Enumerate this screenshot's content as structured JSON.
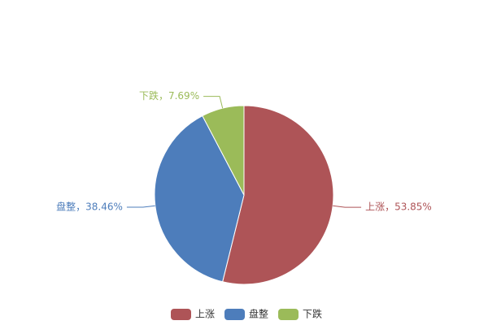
{
  "chart_data": {
    "type": "pie",
    "categories": [
      "上涨",
      "盘整",
      "下跌"
    ],
    "values": [
      53.85,
      38.46,
      7.69
    ],
    "value_labels": [
      "上涨，53.85%",
      "盘整，38.46%",
      "下跌，7.69%"
    ],
    "colors": [
      "#ae5457",
      "#4d7dbb",
      "#9bbb59"
    ],
    "legend": "bottom"
  }
}
